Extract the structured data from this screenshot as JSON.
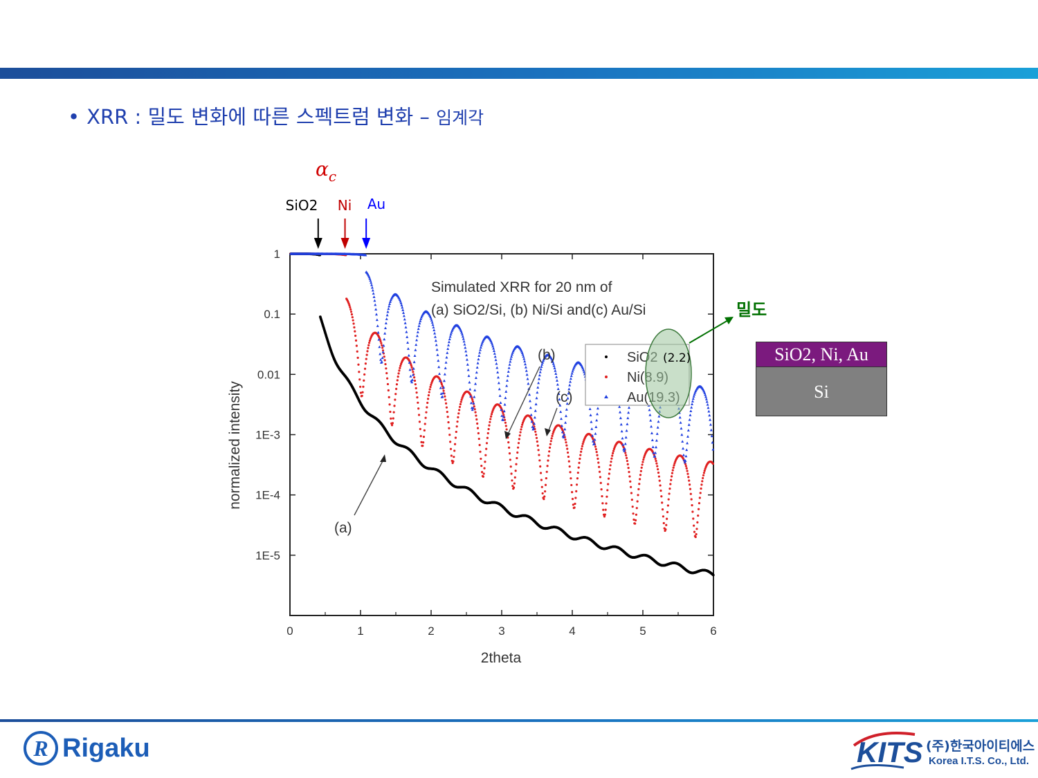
{
  "slide": {
    "heading_bullet": "•",
    "heading_prefix": "XRR :",
    "heading_main": "밀도 변화에 따른 스펙트럼 변화",
    "heading_dash": "–",
    "heading_sub": "임계각",
    "top_bar_color": "#1a73c0"
  },
  "annotations": {
    "alpha_symbol": "α",
    "alpha_sub": "c",
    "markers": [
      {
        "label": "SiO2",
        "x": 0.4,
        "color": "#000000"
      },
      {
        "label": "Ni",
        "x": 0.78,
        "color": "#c00000"
      },
      {
        "label": "Au",
        "x": 1.08,
        "color": "#0000ff"
      }
    ],
    "density_label": "밀도",
    "density_color": "#007000",
    "highlight_value": "(2.2)"
  },
  "layer_stack": {
    "film": "SiO2, Ni, Au",
    "substrate": "Si"
  },
  "chart_data": {
    "type": "scatter",
    "title": "Simulated XRR for 20 nm of",
    "subtitle": "(a) SiO2/Si, (b) Ni/Si and(c) Au/Si",
    "xlabel": "2theta",
    "ylabel": "normalized intensity",
    "xlim": [
      0,
      6
    ],
    "ylim": [
      1e-06,
      1
    ],
    "yscale": "log",
    "x_ticks": [
      "0",
      "1",
      "2",
      "3",
      "4",
      "5",
      "6"
    ],
    "y_ticks": [
      {
        "value": 1,
        "label": "1"
      },
      {
        "value": 0.1,
        "label": "0.1"
      },
      {
        "value": 0.01,
        "label": "0.01"
      },
      {
        "value": 0.001,
        "label": "1E-3"
      },
      {
        "value": 0.0001,
        "label": "1E-4"
      },
      {
        "value": 1e-05,
        "label": "1E-5"
      }
    ],
    "legend_position": "top-right",
    "curve_labels": [
      "(a)",
      "(b)",
      "(c)"
    ],
    "series": [
      {
        "name": "SiO2",
        "density": "(2.2)",
        "marker": "•",
        "color": "#000000",
        "critical_angle": 0.43,
        "intensity_after_edge": 0.09,
        "fringe_period": 0.42,
        "fringe_depth": 0.2,
        "decay": 3.7
      },
      {
        "name": "Ni",
        "density": "(8.9)",
        "marker": "•",
        "color": "#e02020",
        "critical_angle": 0.8,
        "intensity_after_edge": 0.18,
        "fringe_period": 0.43,
        "fringe_depth": 0.95,
        "decay": 3.1
      },
      {
        "name": "Au",
        "density": "(19.3)",
        "marker": "▴",
        "color": "#2040e0",
        "critical_angle": 1.08,
        "intensity_after_edge": 0.5,
        "fringe_period": 0.43,
        "fringe_depth": 0.95,
        "decay": 2.6
      }
    ]
  },
  "footer": {
    "left_logo_letter": "R",
    "left_logo_text": "Rigaku",
    "right_logo_mark": "KITS",
    "right_logo_korean": "(주)한국아이티에스",
    "right_logo_english": "Korea I.T.S. Co., Ltd."
  }
}
